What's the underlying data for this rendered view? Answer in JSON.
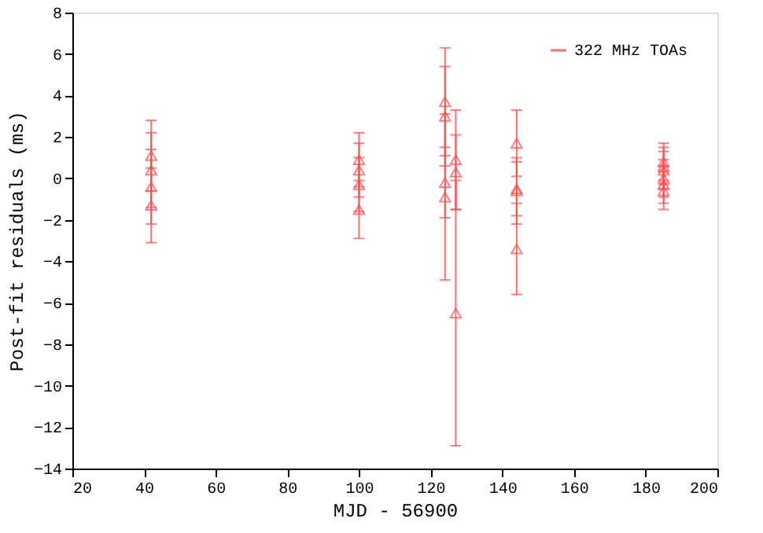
{
  "chart_data": {
    "type": "scatter",
    "xlabel": "MJD - 56900",
    "ylabel": "Post-fit residuals (ms)",
    "xlim": [
      20,
      200
    ],
    "xticks": [
      20,
      40,
      60,
      80,
      100,
      120,
      140,
      160,
      180,
      200
    ],
    "ylim": [
      -14,
      8
    ],
    "yticks": [
      -14,
      -12,
      -10,
      -8,
      -6,
      -4,
      -2,
      0,
      2,
      4,
      6,
      8
    ],
    "grid": false,
    "legend": "top right",
    "marker": "triangle",
    "series": [
      {
        "name": "322 MHz TOAs",
        "color": "#ff5050",
        "x": [
          42,
          42,
          42,
          42,
          100,
          100,
          100,
          100,
          124,
          124,
          124,
          124,
          127,
          127,
          127,
          144,
          144,
          144,
          144,
          185,
          185,
          185,
          185,
          185,
          185
        ],
        "values": [
          1.1,
          0.4,
          -0.4,
          -1.3,
          0.9,
          0.4,
          -0.3,
          -1.5,
          3.7,
          3.0,
          -0.2,
          -0.9,
          0.9,
          0.3,
          -6.5,
          1.7,
          -0.5,
          -0.6,
          -3.4,
          0.8,
          0.6,
          0.4,
          0.0,
          -0.3,
          -0.6
        ],
        "errors": [
          1.7,
          1.8,
          1.8,
          1.8,
          1.3,
          1.3,
          1.3,
          1.4,
          2.6,
          2.4,
          1.7,
          4.0,
          2.4,
          1.8,
          6.4,
          1.6,
          1.3,
          1.6,
          2.2,
          0.9,
          0.9,
          0.9,
          0.9,
          0.9,
          0.9
        ]
      }
    ]
  }
}
